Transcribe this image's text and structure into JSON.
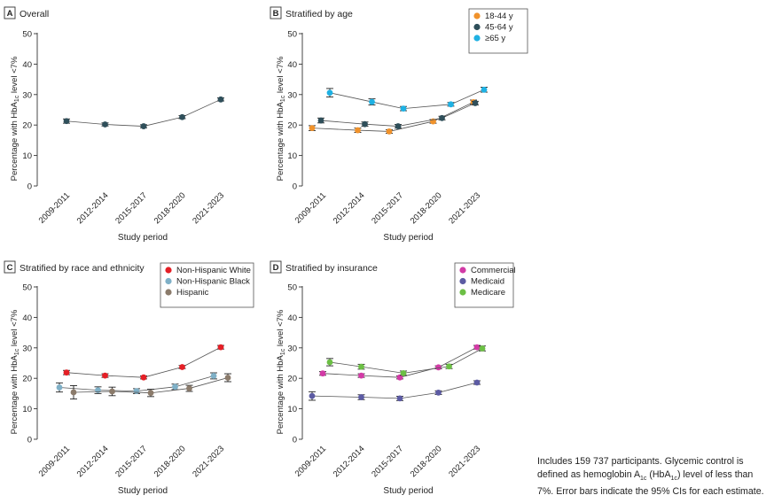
{
  "caption": {
    "line1": "Includes 159 737 participants. Glycemic control is",
    "line2_before": "defined as hemoglobin A",
    "line2_sub": "1c",
    "line2_mid": " (HbA",
    "line2_after": ") level of less than",
    "line3": "7%. Error bars indicate the 95% CIs for each estimate."
  },
  "colors": {
    "axis": "#333333",
    "connector": "#555555",
    "errorbar": "#222222"
  },
  "chart_data": [
    {
      "panel": "A",
      "title": "Overall",
      "type": "line",
      "xlabel": "Study period",
      "ylabel": "Percentage with HbA1c level <7%",
      "categories": [
        "2009-2011",
        "2012-2014",
        "2015-2017",
        "2018-2020",
        "2021-2023"
      ],
      "ylim": [
        0,
        50
      ],
      "yticks": [
        "0",
        "10",
        "20",
        "30",
        "40",
        "50"
      ],
      "grid": false,
      "legend": "none",
      "series": [
        {
          "name": "",
          "color": "#2f4f5a",
          "values": [
            21.3,
            20.2,
            19.6,
            22.6,
            28.4
          ],
          "ci": [
            [
              20.6,
              22.0
            ],
            [
              19.7,
              20.7
            ],
            [
              19.1,
              20.1
            ],
            [
              22.1,
              23.1
            ],
            [
              27.9,
              28.9
            ]
          ]
        }
      ]
    },
    {
      "panel": "B",
      "title": "Stratified by age",
      "type": "line",
      "xlabel": "Study period",
      "ylabel": "Percentage with HbA1c level <7%",
      "categories": [
        "2009-2011",
        "2012-2014",
        "2015-2017",
        "2018-2020",
        "2021-2023"
      ],
      "ylim": [
        0,
        50
      ],
      "yticks": [
        "0",
        "10",
        "20",
        "30",
        "40",
        "50"
      ],
      "grid": false,
      "legend": "top-right",
      "series": [
        {
          "name": "18-44 y",
          "color": "#f0922b",
          "values": [
            19.0,
            18.3,
            17.9,
            21.2,
            27.5
          ],
          "ci": [
            [
              18.2,
              19.8
            ],
            [
              17.6,
              19.0
            ],
            [
              17.3,
              18.5
            ],
            [
              20.6,
              21.8
            ],
            [
              26.8,
              28.2
            ]
          ]
        },
        {
          "name": "45-64 y",
          "color": "#2f4f5a",
          "values": [
            21.5,
            20.3,
            19.6,
            22.3,
            27.2
          ],
          "ci": [
            [
              20.7,
              22.3
            ],
            [
              19.6,
              21.0
            ],
            [
              19.0,
              20.2
            ],
            [
              21.7,
              22.9
            ],
            [
              26.6,
              27.8
            ]
          ]
        },
        {
          "name": "≥65 y",
          "color": "#1fb1e3",
          "values": [
            30.6,
            27.6,
            25.4,
            26.8,
            31.6
          ],
          "ci": [
            [
              29.2,
              32.0
            ],
            [
              26.6,
              28.6
            ],
            [
              24.7,
              26.1
            ],
            [
              26.2,
              27.4
            ],
            [
              30.8,
              32.4
            ]
          ]
        }
      ]
    },
    {
      "panel": "C",
      "title": "Stratified by race and ethnicity",
      "type": "line",
      "xlabel": "Study period",
      "ylabel": "Percentage with HbA1c level <7%",
      "categories": [
        "2009-2011",
        "2012-2014",
        "2015-2017",
        "2018-2020",
        "2021-2023"
      ],
      "ylim": [
        0,
        50
      ],
      "yticks": [
        "0",
        "10",
        "20",
        "30",
        "40",
        "50"
      ],
      "grid": false,
      "legend": "top-right",
      "series": [
        {
          "name": "Non-Hispanic White",
          "color": "#e41f26",
          "values": [
            21.9,
            20.9,
            20.3,
            23.7,
            30.2
          ],
          "ci": [
            [
              21.2,
              22.6
            ],
            [
              20.3,
              21.5
            ],
            [
              19.8,
              20.8
            ],
            [
              23.2,
              24.2
            ],
            [
              29.6,
              30.8
            ]
          ]
        },
        {
          "name": "Non-Hispanic Black",
          "color": "#7fb0c7",
          "values": [
            17.0,
            16.1,
            15.8,
            17.2,
            20.8
          ],
          "ci": [
            [
              15.5,
              18.5
            ],
            [
              15.0,
              17.2
            ],
            [
              15.0,
              16.6
            ],
            [
              16.3,
              18.1
            ],
            [
              19.8,
              21.8
            ]
          ]
        },
        {
          "name": "Hispanic",
          "color": "#8b7b6b",
          "values": [
            15.4,
            15.7,
            15.2,
            16.7,
            20.2
          ],
          "ci": [
            [
              13.2,
              17.6
            ],
            [
              14.3,
              17.1
            ],
            [
              14.0,
              16.4
            ],
            [
              15.7,
              17.7
            ],
            [
              18.9,
              21.5
            ]
          ]
        }
      ]
    },
    {
      "panel": "D",
      "title": "Stratified by insurance",
      "type": "line",
      "xlabel": "Study period",
      "ylabel": "Percentage with HbA1c level <7%",
      "categories": [
        "2009-2011",
        "2012-2014",
        "2015-2017",
        "2018-2020",
        "2021-2023"
      ],
      "ylim": [
        0,
        50
      ],
      "yticks": [
        "0",
        "10",
        "20",
        "30",
        "40",
        "50"
      ],
      "grid": false,
      "legend": "top-right",
      "series": [
        {
          "name": "Commercial",
          "color": "#d23ba6",
          "values": [
            21.6,
            20.9,
            20.3,
            23.6,
            30.2
          ],
          "ci": [
            [
              21.0,
              22.2
            ],
            [
              20.3,
              21.5
            ],
            [
              19.8,
              20.8
            ],
            [
              23.1,
              24.1
            ],
            [
              29.6,
              30.8
            ]
          ]
        },
        {
          "name": "Medicaid",
          "color": "#5c5ba3",
          "values": [
            14.2,
            13.8,
            13.4,
            15.3,
            18.6
          ],
          "ci": [
            [
              12.8,
              15.6
            ],
            [
              13.0,
              14.6
            ],
            [
              12.7,
              14.1
            ],
            [
              14.7,
              15.9
            ],
            [
              18.0,
              19.2
            ]
          ]
        },
        {
          "name": "Medicare",
          "color": "#6cbf45",
          "values": [
            25.3,
            23.8,
            21.7,
            23.9,
            29.8
          ],
          "ci": [
            [
              24.1,
              26.5
            ],
            [
              23.0,
              24.6
            ],
            [
              21.0,
              22.4
            ],
            [
              23.2,
              24.6
            ],
            [
              29.0,
              30.6
            ]
          ]
        }
      ]
    }
  ]
}
